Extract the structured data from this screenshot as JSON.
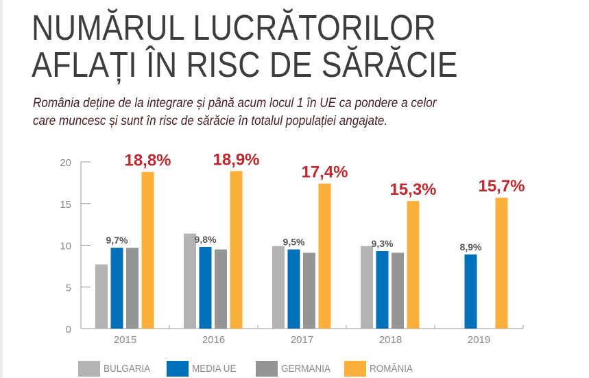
{
  "header": {
    "title_line1": "NUMĂRUL LUCRĂTORILOR",
    "title_line2": "AFLAȚI ÎN RISC DE SĂRĂCIE",
    "subtitle_line1": "România deține de la integrare și până acum locul 1 în UE ca pondere a celor",
    "subtitle_line2": "care muncesc și sunt în risc de sărăcie în totalul populației angajate."
  },
  "chart_data": {
    "type": "bar",
    "categories": [
      "2015",
      "2016",
      "2017",
      "2018",
      "2019"
    ],
    "ylim": [
      0,
      20
    ],
    "yticks": [
      0,
      5,
      10,
      15,
      20
    ],
    "grid": false,
    "legend_placement": "bottom",
    "series": [
      {
        "name": "BULGARIA",
        "color": "#b3b3b3",
        "values": [
          7.7,
          11.4,
          9.9,
          9.9,
          null
        ],
        "labels": [
          null,
          null,
          null,
          null,
          null
        ]
      },
      {
        "name": "MEDIA UE",
        "color": "#0070bb",
        "values": [
          9.7,
          9.8,
          9.5,
          9.3,
          8.9
        ],
        "labels": [
          "9,7%",
          "9,8%",
          "9,5%",
          "9,3%",
          "8,9%"
        ]
      },
      {
        "name": "GERMANIA",
        "color": "#959595",
        "values": [
          9.7,
          9.5,
          9.1,
          9.1,
          null
        ],
        "labels": [
          null,
          null,
          null,
          null,
          null
        ]
      },
      {
        "name": "ROMÂNIA",
        "color": "#fbb03b",
        "values": [
          18.8,
          18.9,
          17.4,
          15.3,
          15.7
        ],
        "labels": [
          "18,8%",
          "18,9%",
          "17,4%",
          "15,3%",
          "15,7%"
        ]
      }
    ],
    "label_colors": {
      "media_ue": "#555555",
      "romania": "#c1272d"
    }
  }
}
